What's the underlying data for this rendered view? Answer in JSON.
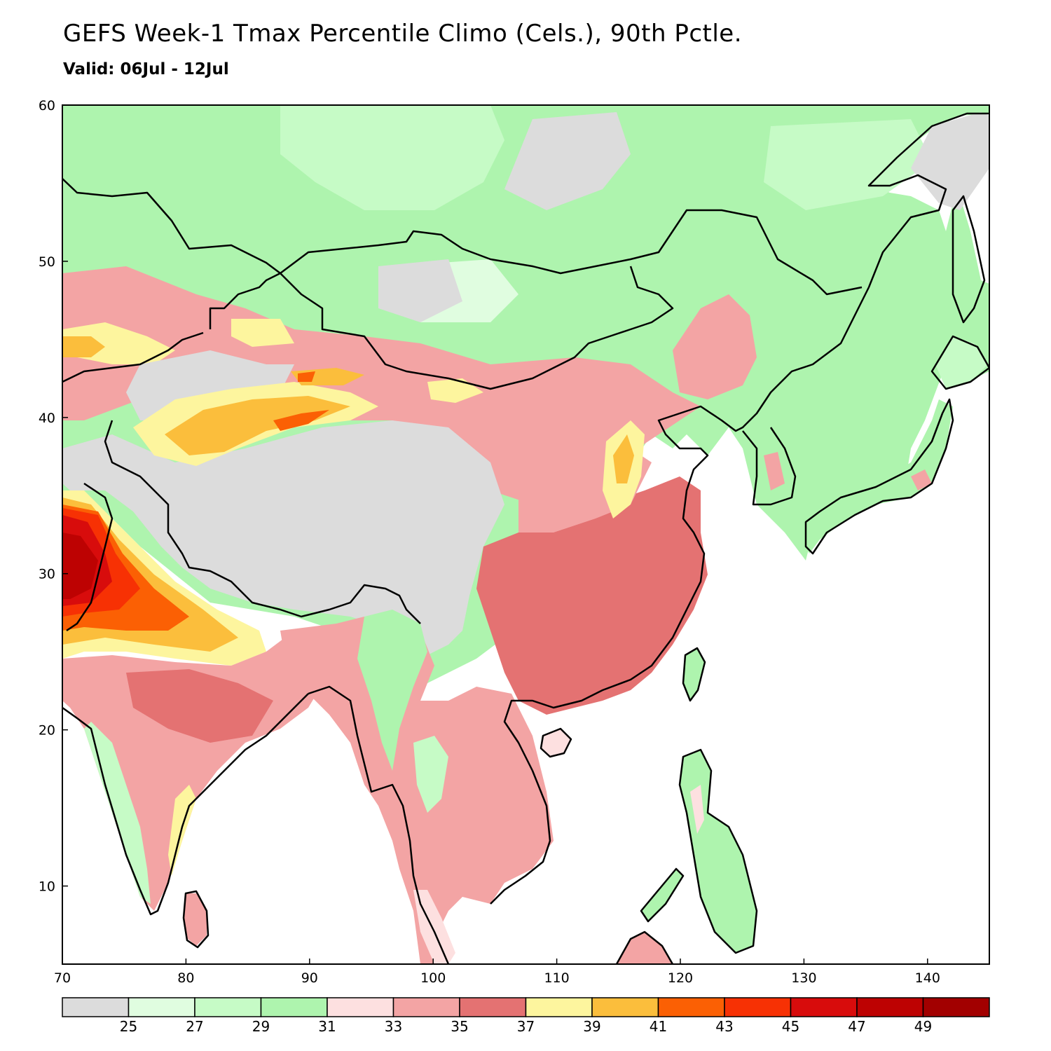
{
  "title": "GEFS Week-1 Tmax Percentile Climo (Cels.), 90th Pctle.",
  "subtitle": "Valid: 06Jul - 12Jul",
  "map": {
    "lon_range": [
      70,
      145
    ],
    "lat_range": [
      5,
      60
    ],
    "x_ticks": [
      "70",
      "80",
      "90",
      "100",
      "110",
      "120",
      "130",
      "140"
    ],
    "y_ticks": [
      "10",
      "20",
      "30",
      "40",
      "50",
      "60"
    ]
  },
  "colorbar": {
    "colors": [
      "#dcdcdc",
      "#e0fde0",
      "#c6fbc6",
      "#aef4ae",
      "#fde0e0",
      "#f3a4a4",
      "#e47272",
      "#fdf59e",
      "#fbbe3c",
      "#fb6004",
      "#f73104",
      "#d80c0c",
      "#bd0202",
      "#a20000"
    ],
    "labels": [
      "25",
      "27",
      "29",
      "31",
      "33",
      "35",
      "37",
      "39",
      "41",
      "43",
      "45",
      "47",
      "49"
    ]
  }
}
